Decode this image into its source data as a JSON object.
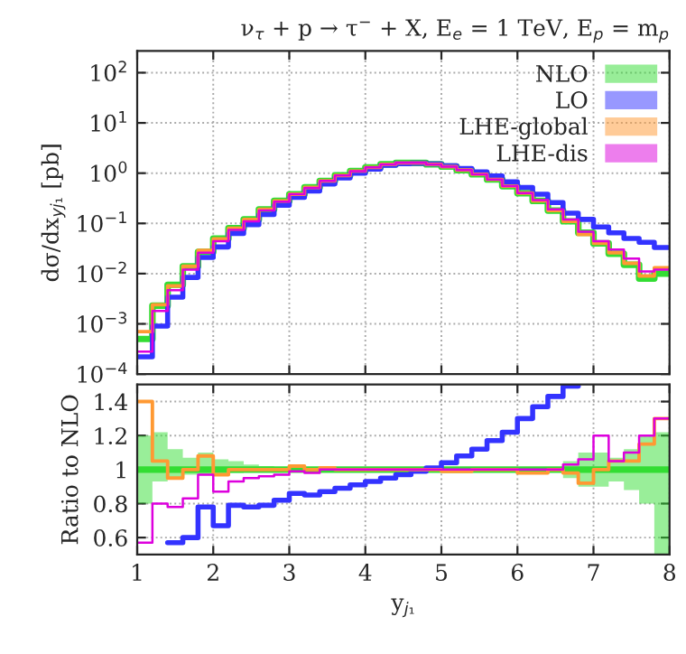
{
  "chart_data": [
    {
      "type": "step",
      "title": "ν$_{τ}$ + p → τ$^{−}$ + X, E$_{e}$ = 1 TeV, E$_{p}$ = m$_{p}$",
      "ylabel": "dσ/dx$_{yj₁}$ [pb]",
      "x": [
        1.0,
        1.2,
        1.4,
        1.6,
        1.8,
        2.0,
        2.2,
        2.4,
        2.6,
        2.8,
        3.0,
        3.2,
        3.4,
        3.6,
        3.8,
        4.0,
        4.2,
        4.4,
        4.6,
        4.8,
        5.0,
        5.2,
        5.4,
        5.6,
        5.8,
        6.0,
        6.2,
        6.4,
        6.6,
        6.8,
        7.0,
        7.2,
        7.4,
        7.6,
        7.8,
        8.0
      ],
      "log": "y",
      "xlim": [
        1,
        8
      ],
      "xticks": [
        1,
        2,
        3,
        4,
        5,
        6,
        7,
        8
      ],
      "ylim": [
        0.0001,
        270
      ],
      "yticks": [
        {
          "value": 0.0001,
          "label": "10$^{−4}$"
        },
        {
          "value": 0.001,
          "label": "10$^{−3}$"
        },
        {
          "value": 0.01,
          "label": "10$^{−2}$"
        },
        {
          "value": 0.1,
          "label": "10$^{−1}$"
        },
        {
          "value": 1,
          "label": "10$^{0}$"
        },
        {
          "value": 10,
          "label": "10$^{1}$"
        },
        {
          "value": 100,
          "label": "10$^{2}$"
        }
      ],
      "tick_labels": "y",
      "grid": true,
      "legend": "top right",
      "series": [
        {
          "name": "NLO",
          "color": "#33dd33",
          "values": [
            0.0005,
            0.0023,
            0.006,
            0.014,
            0.027,
            0.05,
            0.08,
            0.12,
            0.19,
            0.28,
            0.38,
            0.52,
            0.7,
            0.9,
            1.1,
            1.3,
            1.5,
            1.6,
            1.6,
            1.5,
            1.35,
            1.15,
            0.95,
            0.75,
            0.55,
            0.4,
            0.28,
            0.18,
            0.11,
            0.065,
            0.04,
            0.025,
            0.015,
            0.008,
            0.01,
            0.01
          ]
        },
        {
          "name": "LO",
          "color": "#3333ff",
          "values": [
            0.00022,
            0.0009,
            0.0034,
            0.0084,
            0.021,
            0.034,
            0.063,
            0.094,
            0.15,
            0.23,
            0.33,
            0.44,
            0.61,
            0.8,
            1.0,
            1.2,
            1.43,
            1.55,
            1.58,
            1.52,
            1.4,
            1.24,
            1.06,
            0.88,
            0.67,
            0.52,
            0.38,
            0.26,
            0.16,
            0.12,
            0.085,
            0.065,
            0.05,
            0.042,
            0.033,
            0.033
          ]
        },
        {
          "name": "LHE-global",
          "color": "#ff9933",
          "values": [
            0.0007,
            0.0024,
            0.0057,
            0.014,
            0.029,
            0.049,
            0.08,
            0.12,
            0.19,
            0.28,
            0.38,
            0.52,
            0.7,
            0.9,
            1.1,
            1.3,
            1.5,
            1.6,
            1.6,
            1.5,
            1.35,
            1.15,
            0.95,
            0.75,
            0.55,
            0.4,
            0.28,
            0.18,
            0.11,
            0.06,
            0.04,
            0.026,
            0.016,
            0.009,
            0.013,
            0.013
          ]
        },
        {
          "name": "LHE-dis",
          "color": "#dd00dd",
          "values": [
            0.00028,
            0.0018,
            0.0047,
            0.012,
            0.026,
            0.044,
            0.074,
            0.11,
            0.18,
            0.27,
            0.38,
            0.51,
            0.7,
            0.9,
            1.1,
            1.3,
            1.5,
            1.6,
            1.6,
            1.5,
            1.35,
            1.15,
            0.95,
            0.75,
            0.55,
            0.4,
            0.29,
            0.19,
            0.12,
            0.068,
            0.044,
            0.03,
            0.02,
            0.011,
            0.012,
            0.012
          ]
        }
      ]
    },
    {
      "type": "step",
      "xlabel": "y$_{j₁}$",
      "ylabel": "Ratio to NLO",
      "x": [
        1.0,
        1.2,
        1.4,
        1.6,
        1.8,
        2.0,
        2.2,
        2.4,
        2.6,
        2.8,
        3.0,
        3.2,
        3.4,
        3.6,
        3.8,
        4.0,
        4.2,
        4.4,
        4.6,
        4.8,
        5.0,
        5.2,
        5.4,
        5.6,
        5.8,
        6.0,
        6.2,
        6.4,
        6.6,
        6.8,
        7.0,
        7.2,
        7.4,
        7.6,
        7.8,
        8.0
      ],
      "xlim": [
        1,
        8
      ],
      "xticks": [
        1,
        2,
        3,
        4,
        5,
        6,
        7,
        8
      ],
      "ylim": [
        0.5,
        1.5
      ],
      "yticks": [
        0.6,
        0.8,
        1,
        1.2,
        1.4
      ],
      "grid": true,
      "series": [
        {
          "color": "#33dd33",
          "values": [
            1,
            1,
            1,
            1,
            1,
            1,
            1,
            1,
            1,
            1,
            1,
            1,
            1,
            1,
            1,
            1,
            1,
            1,
            1,
            1,
            1,
            1,
            1,
            1,
            1,
            1,
            1,
            1,
            1,
            1,
            1,
            1,
            1,
            1,
            1,
            1
          ],
          "lower": [
            0.8,
            0.93,
            0.95,
            0.97,
            0.97,
            0.97,
            0.98,
            0.99,
            0.99,
            0.99,
            0.99,
            0.99,
            0.99,
            0.99,
            0.99,
            0.99,
            0.99,
            0.99,
            0.99,
            0.99,
            0.99,
            0.99,
            0.99,
            0.99,
            0.99,
            0.99,
            0.99,
            0.99,
            0.95,
            0.9,
            0.9,
            0.93,
            0.88,
            0.8,
            0.5,
            0.5
          ],
          "upper": [
            1.2,
            1.22,
            1.12,
            1.07,
            1.1,
            1.06,
            1.05,
            1.03,
            1.02,
            1.01,
            1.01,
            1.01,
            1.01,
            1.01,
            1.01,
            1.01,
            1.01,
            1.01,
            1.01,
            1.01,
            1.01,
            1.01,
            1.01,
            1.01,
            1.01,
            1.01,
            1.01,
            1.01,
            1.05,
            1.1,
            1.1,
            1.07,
            1.12,
            1.2,
            1.22,
            1.22
          ]
        },
        {
          "color": "#3333ff",
          "values": [
            null,
            null,
            0.57,
            0.6,
            0.78,
            0.67,
            0.79,
            0.78,
            0.79,
            0.82,
            0.86,
            0.85,
            0.87,
            0.89,
            0.91,
            0.93,
            0.95,
            0.97,
            0.99,
            1.01,
            1.04,
            1.08,
            1.12,
            1.17,
            1.22,
            1.3,
            1.37,
            1.43,
            1.49,
            1.5,
            null,
            null,
            null,
            null,
            null,
            null
          ]
        },
        {
          "color": "#ff9933",
          "values": [
            1.4,
            1.05,
            0.95,
            1.0,
            1.08,
            0.97,
            1.0,
            1.0,
            1.0,
            1.0,
            1.02,
            1.0,
            1.01,
            1.0,
            1.0,
            1.0,
            1.0,
            1.0,
            1.0,
            1.0,
            0.99,
            0.99,
            1.0,
            1.0,
            1.0,
            0.98,
            0.98,
            1.0,
            0.98,
            0.92,
            1.0,
            1.05,
            1.05,
            1.15,
            1.3,
            1.3
          ]
        },
        {
          "color": "#dd00dd",
          "values": [
            0.57,
            0.8,
            0.78,
            0.83,
            0.97,
            0.87,
            0.93,
            0.95,
            0.96,
            0.97,
            0.99,
            0.98,
            1.0,
            1.0,
            1.0,
            1.0,
            1.0,
            1.0,
            1.0,
            1.0,
            1.0,
            1.0,
            1.0,
            1.0,
            1.0,
            1.0,
            1.0,
            1.0,
            1.03,
            1.06,
            1.2,
            1.05,
            1.1,
            1.2,
            1.3,
            1.3
          ]
        }
      ]
    }
  ]
}
